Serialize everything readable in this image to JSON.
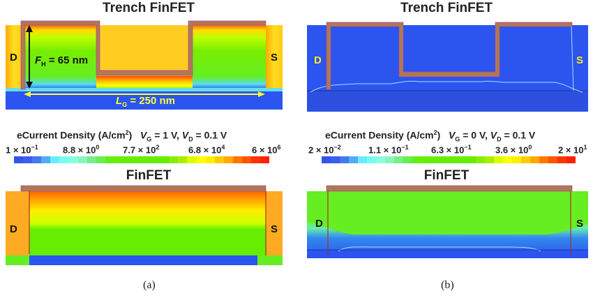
{
  "panel_a": {
    "top_title": "Trench FinFET",
    "bottom_title": "FinFET",
    "drain_label": "D",
    "source_label": "S",
    "fin_height_label": "F",
    "fin_height_sub": "H",
    "fin_height_value": " = 65 nm",
    "gate_length_label": "L",
    "gate_length_sub": "G",
    "gate_length_value": " = 250 nm",
    "colorbar": {
      "quantity": "eCurrent Density (A/cm",
      "unit_sup": "2",
      "unit_close": ")",
      "vg": "V",
      "vg_sub": "G",
      "vg_value": " = 1 V, ",
      "vd": "V",
      "vd_sub": "D",
      "vd_value": " = 0.1 V",
      "ticks": [
        {
          "mant": "1 × 10",
          "exp": "−1"
        },
        {
          "mant": "8.8 × 10",
          "exp": "0"
        },
        {
          "mant": "7.7 × 10",
          "exp": "2"
        },
        {
          "mant": "6.8 × 10",
          "exp": "4"
        },
        {
          "mant": "6 × 10",
          "exp": "6"
        }
      ]
    },
    "caption": "(a)"
  },
  "panel_b": {
    "top_title": "Trench FinFET",
    "bottom_title": "FinFET",
    "drain_label": "D",
    "source_label": "S",
    "colorbar": {
      "quantity": "eCurrent Density (A/cm",
      "unit_sup": "2",
      "unit_close": ")",
      "vg": "V",
      "vg_sub": "G",
      "vg_value": " = 0 V, ",
      "vd": "V",
      "vd_sub": "D",
      "vd_value": " = 0.1 V",
      "ticks": [
        {
          "mant": "2 × 10",
          "exp": "−2"
        },
        {
          "mant": "1.1 × 10",
          "exp": "−1"
        },
        {
          "mant": "6.3 × 10",
          "exp": "−1"
        },
        {
          "mant": "3.6 × 10",
          "exp": "0"
        },
        {
          "mant": "2 × 10",
          "exp": "1"
        }
      ]
    },
    "caption": "(b)"
  },
  "colors": {
    "gate": "#b07850",
    "colorbar": [
      "#3355ee",
      "#3d5cf0",
      "#4477f2",
      "#55aaf5",
      "#66eeff",
      "#77ffee",
      "#88ffdd",
      "#88f5c0",
      "#77ee88",
      "#66ee55",
      "#66ee11",
      "#66ee00",
      "#66ee00",
      "#66ee00",
      "#66ee00",
      "#66ee00",
      "#66ee00",
      "#88ee00",
      "#aaee00",
      "#ddff00",
      "#ffff00",
      "#ffee00",
      "#ffcc00",
      "#ffaa00",
      "#ff7700",
      "#ff5500",
      "#ff3300",
      "#ff2200"
    ]
  }
}
